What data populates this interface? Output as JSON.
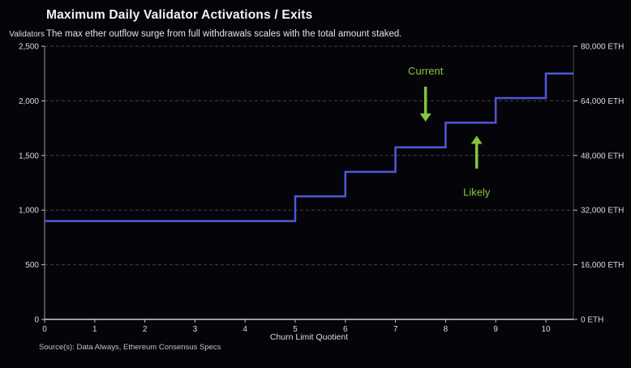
{
  "header": {
    "title": "Maximum Daily Validator Activations / Exits",
    "subtitle": "The max ether outflow surge from full withdrawals scales with the total amount staked."
  },
  "footer": {
    "source": "Source(s): Data Always, Ethereum Consensus Specs"
  },
  "chart_data": {
    "type": "line",
    "line_shape": "step-post",
    "title": "Maximum Daily Validator Activations / Exits",
    "subtitle": "The max ether outflow surge from full withdrawals scales with the total amount staked.",
    "xlabel": "Churn Limit Quotient",
    "ylabel_left": "Validators",
    "ylabel_right": "ETH",
    "xlim": [
      0,
      10.55
    ],
    "ylim_left": [
      0,
      2500
    ],
    "ylim_right": [
      0,
      80000
    ],
    "grid": "horizontal dashed",
    "legend": "none",
    "x_ticks": [
      0,
      1,
      2,
      3,
      4,
      5,
      6,
      7,
      8,
      9,
      10
    ],
    "y_ticks_left": [
      {
        "value": 0,
        "label": "0"
      },
      {
        "value": 500,
        "label": "500"
      },
      {
        "value": 1000,
        "label": "1,000"
      },
      {
        "value": 1500,
        "label": "1,500"
      },
      {
        "value": 2000,
        "label": "2,000"
      },
      {
        "value": 2500,
        "label": "2,500"
      }
    ],
    "y_ticks_right": [
      {
        "value": 0,
        "label": "0 ETH"
      },
      {
        "value": 16000,
        "label": "16,000 ETH"
      },
      {
        "value": 32000,
        "label": "32,000 ETH"
      },
      {
        "value": 48000,
        "label": "48,000 ETH"
      },
      {
        "value": 64000,
        "label": "64,000 ETH"
      },
      {
        "value": 80000,
        "label": "80,000 ETH"
      }
    ],
    "gridline_values": [
      500,
      1000,
      1500,
      2000,
      2500
    ],
    "series": [
      {
        "name": "Maximum daily validator activations / exits",
        "color": "#5156db",
        "points": [
          [
            0,
            900
          ],
          [
            5,
            900
          ],
          [
            5,
            1125
          ],
          [
            6,
            1125
          ],
          [
            6,
            1350
          ],
          [
            7,
            1350
          ],
          [
            7,
            1575
          ],
          [
            8,
            1575
          ],
          [
            8,
            1800
          ],
          [
            9,
            1800
          ],
          [
            9,
            2025
          ],
          [
            10,
            2025
          ],
          [
            10,
            2250
          ],
          [
            10.55,
            2250
          ]
        ]
      }
    ],
    "annotations": [
      {
        "label": "Current",
        "direction": "down",
        "x": 7.6,
        "label_value": 2270,
        "arrow_start_value": 2130,
        "arrow_tip_value": 1810
      },
      {
        "label": "Likely",
        "direction": "up",
        "x": 8.62,
        "label_value": 1160,
        "arrow_start_value": 1380,
        "arrow_tip_value": 1680
      }
    ],
    "annotation_color": "#86c53f"
  },
  "colors": {
    "background": "#050509",
    "series_line": "#5156db",
    "grid": "#3e3e46",
    "axis_bottom": "#cfcfd4",
    "axis_left": "#9a9aa2",
    "axis_right": "#4a4a52",
    "tick": "#c0c0c6",
    "tick_label": "#dcdcdc",
    "annotation": "#86c53f"
  }
}
